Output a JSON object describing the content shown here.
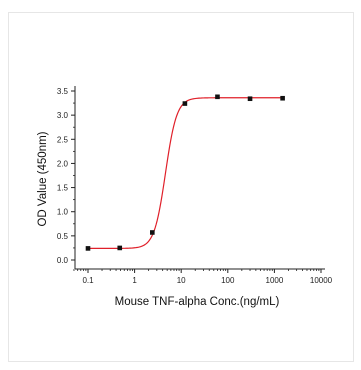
{
  "chart_data": {
    "type": "scatter",
    "xlabel": "Mouse TNF-alpha Conc.(ng/mL)",
    "ylabel": "OD Value (450nm)",
    "x_scale": "log",
    "xlim": [
      0.05,
      10000
    ],
    "ylim": [
      -0.2,
      3.5
    ],
    "x_ticks": [
      {
        "value": 0.1,
        "label": "0.1"
      },
      {
        "value": 1,
        "label": "1"
      },
      {
        "value": 10,
        "label": "10"
      },
      {
        "value": 100,
        "label": "100"
      },
      {
        "value": 1000,
        "label": "1000"
      },
      {
        "value": 10000,
        "label": "10000"
      }
    ],
    "y_ticks": [
      {
        "value": 0.0,
        "label": "0.0"
      },
      {
        "value": 0.5,
        "label": "0.5"
      },
      {
        "value": 1.0,
        "label": "1.0"
      },
      {
        "value": 1.5,
        "label": "1.5"
      },
      {
        "value": 2.0,
        "label": "2.0"
      },
      {
        "value": 2.5,
        "label": "2.5"
      },
      {
        "value": 3.0,
        "label": "3.0"
      },
      {
        "value": 3.5,
        "label": "3.5"
      }
    ],
    "points": [
      {
        "x": 0.1,
        "y": 0.24
      },
      {
        "x": 0.48,
        "y": 0.25
      },
      {
        "x": 2.4,
        "y": 0.57
      },
      {
        "x": 12,
        "y": 3.24
      },
      {
        "x": 60,
        "y": 3.38
      },
      {
        "x": 300,
        "y": 3.34
      },
      {
        "x": 1500,
        "y": 3.35
      }
    ],
    "fit": {
      "bottom": 0.24,
      "top": 3.36,
      "ec50": 4.6,
      "hill": 3.6
    },
    "marker_color": "#111111",
    "fit_color": "#e0202a",
    "grid": false,
    "legend": "none"
  }
}
